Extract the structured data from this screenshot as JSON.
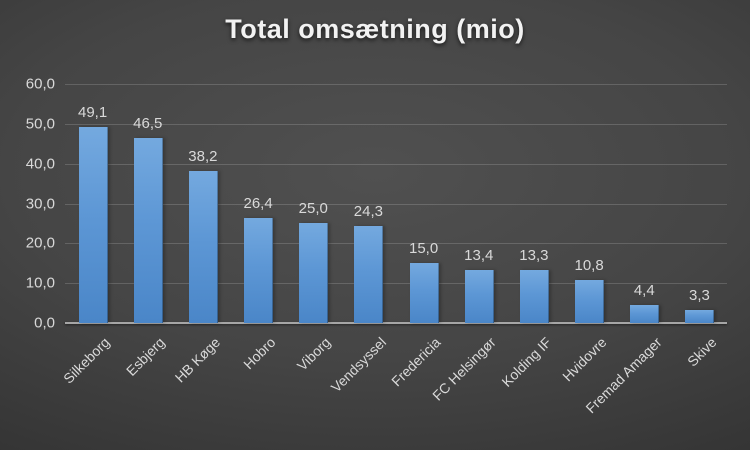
{
  "title": "Total omsætning (mio)",
  "colors": {
    "background_center": "#505050",
    "background_edge": "#1f1f1f",
    "bar_gradient_top": "#74a9df",
    "bar_gradient_bottom": "#4a86c8",
    "gridline": "#5a5a5a",
    "axis_line": "#a6a6a6",
    "text_labels": "#d9d9d9",
    "title_text": "#f2f2f2"
  },
  "chart_data": {
    "type": "bar",
    "title": "Total omsætning (mio)",
    "categories": [
      "Silkeborg",
      "Esbjerg",
      "HB Køge",
      "Hobro",
      "Viborg",
      "Vendsyssel",
      "Fredericia",
      "FC Helsingør",
      "Kolding IF",
      "Hvidovre",
      "Fremad Amager",
      "Skive"
    ],
    "values": [
      49.1,
      46.5,
      38.2,
      26.4,
      25.0,
      24.3,
      15.0,
      13.4,
      13.3,
      10.8,
      4.4,
      3.3
    ],
    "value_labels": [
      "49,1",
      "46,5",
      "38,2",
      "26,4",
      "25,0",
      "24,3",
      "15,0",
      "13,4",
      "13,3",
      "10,8",
      "4,4",
      "3,3"
    ],
    "xlabel": "",
    "ylabel": "",
    "ylim": [
      0,
      60
    ],
    "y_tick_values": [
      0,
      10,
      20,
      30,
      40,
      50,
      60
    ],
    "y_tick_labels": [
      "0,0",
      "10,0",
      "20,0",
      "30,0",
      "40,0",
      "50,0",
      "60,0"
    ],
    "grid": true,
    "legend": false,
    "value_decimal_separator": ","
  }
}
